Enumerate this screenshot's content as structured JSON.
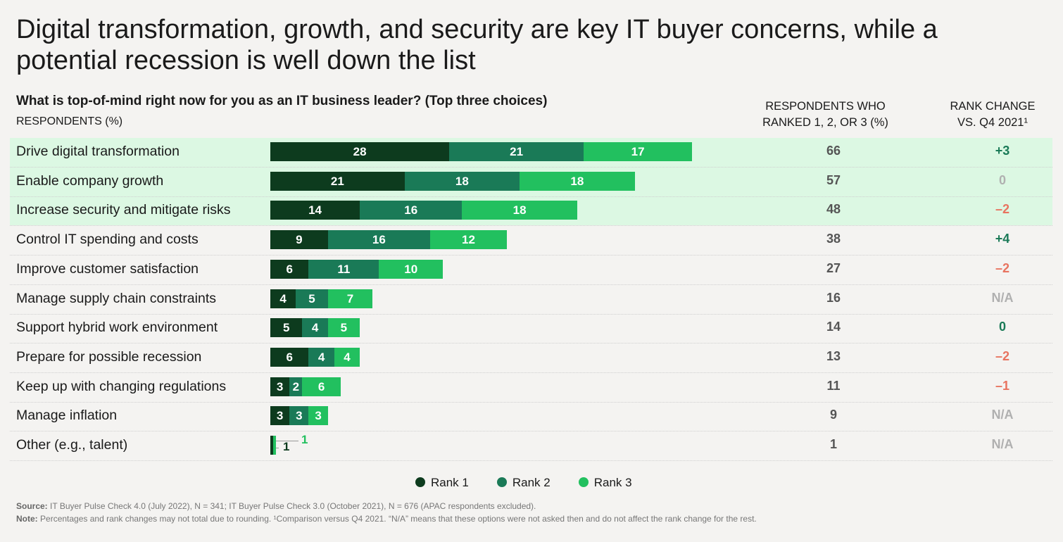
{
  "title": "Digital transformation, growth, and security are key IT buyer concerns, while a potential recession is well down the list",
  "question": "What is top-of-mind right now for you as an IT business leader? (Top three choices)",
  "respondents_label": "RESPONDENTS (%)",
  "col_total_header": "RESPONDENTS WHO RANKED 1, 2, OR 3 (%)",
  "col_change_header": "RANK CHANGE VS. Q4 2021¹",
  "colors": {
    "rank1": "#0d3b1e",
    "rank2": "#1a7a57",
    "rank3": "#22c05f",
    "highlight": "#dcf8e3",
    "positive": "#1a7a57",
    "negative": "#e8735f",
    "neutral": "#b0b0b0"
  },
  "chart_data": {
    "type": "bar",
    "orientation": "horizontal-stacked",
    "categories": [
      "Drive digital transformation",
      "Enable company growth",
      "Increase security and mitigate risks",
      "Control IT spending and costs",
      "Improve customer satisfaction",
      "Manage supply chain constraints",
      "Support hybrid work environment",
      "Prepare for possible recession",
      "Keep up with changing regulations",
      "Manage inflation",
      "Other (e.g., talent)"
    ],
    "series": [
      {
        "name": "Rank 1",
        "values": [
          28,
          21,
          14,
          9,
          6,
          4,
          5,
          6,
          3,
          3,
          1
        ]
      },
      {
        "name": "Rank 2",
        "values": [
          21,
          18,
          16,
          16,
          11,
          5,
          4,
          4,
          2,
          3,
          0
        ]
      },
      {
        "name": "Rank 3",
        "values": [
          17,
          18,
          18,
          12,
          10,
          7,
          5,
          4,
          6,
          3,
          1
        ]
      }
    ],
    "totals": [
      "66",
      "57",
      "48",
      "38",
      "27",
      "16",
      "14",
      "13",
      "11",
      "9",
      "1"
    ],
    "rank_change": [
      {
        "text": "+3",
        "tone": "positive"
      },
      {
        "text": "0",
        "tone": "neutral"
      },
      {
        "text": "–2",
        "tone": "negative"
      },
      {
        "text": "+4",
        "tone": "positive"
      },
      {
        "text": "–2",
        "tone": "negative"
      },
      {
        "text": "N/A",
        "tone": "neutral"
      },
      {
        "text": "0",
        "tone": "positive"
      },
      {
        "text": "–2",
        "tone": "negative"
      },
      {
        "text": "–1",
        "tone": "negative"
      },
      {
        "text": "N/A",
        "tone": "neutral"
      },
      {
        "text": "N/A",
        "tone": "neutral"
      }
    ],
    "highlighted_rows": 3,
    "legend_placement": "bottom"
  },
  "legend": [
    "Rank 1",
    "Rank 2",
    "Rank 3"
  ],
  "footer": {
    "source_label": "Source:",
    "source": "IT Buyer Pulse Check 4.0 (July 2022), N = 341; IT Buyer Pulse Check 3.0 (October 2021), N = 676 (APAC respondents excluded).",
    "note_label": "Note:",
    "note": "Percentages and rank changes may not total due to rounding. ¹Comparison versus Q4 2021. “N/A” means that these options were not asked then and do not affect the rank change for the rest."
  }
}
